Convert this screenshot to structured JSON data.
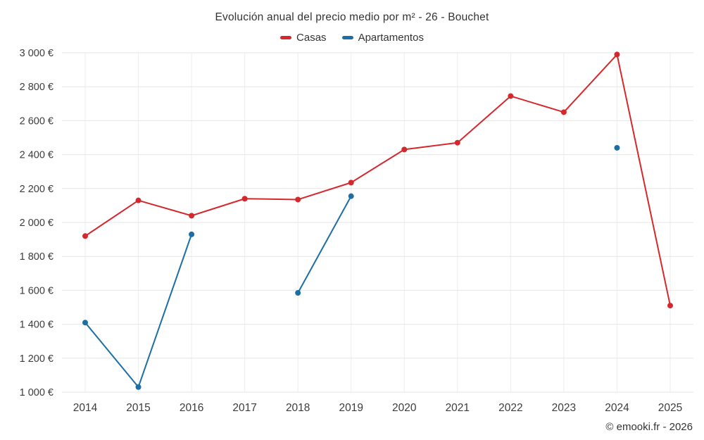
{
  "title": "Evolución anual del precio medio por m² - 26 - Bouchet",
  "credit": "© emooki.fr - 2026",
  "colors": {
    "text": "#333333",
    "grid_h": "#e6e6e6",
    "grid_v": "#ededed",
    "casas": "#d5282d",
    "apartamentos": "#1c6ea4"
  },
  "chart_data": {
    "type": "line",
    "title": "Evolución anual del precio medio por m² - 26 - Bouchet",
    "categories": [
      "2014",
      "2015",
      "2016",
      "2017",
      "2018",
      "2019",
      "2020",
      "2021",
      "2022",
      "2023",
      "2024",
      "2025"
    ],
    "series": [
      {
        "name": "Casas",
        "color": "#d5282d",
        "values": [
          1920,
          2130,
          2040,
          2140,
          2135,
          2235,
          2430,
          2470,
          2745,
          2650,
          2990,
          1510
        ]
      },
      {
        "name": "Apartamentos",
        "color": "#1c6ea4",
        "values": [
          1410,
          1030,
          1930,
          null,
          1585,
          2155,
          null,
          null,
          null,
          null,
          2440,
          null
        ]
      }
    ],
    "xlabel": "",
    "ylabel": "",
    "ylim": [
      1000,
      3000
    ],
    "ytick_step": 200,
    "ytick_suffix": " €",
    "grid": true,
    "legend_position": "top",
    "marker_radius": 4
  }
}
